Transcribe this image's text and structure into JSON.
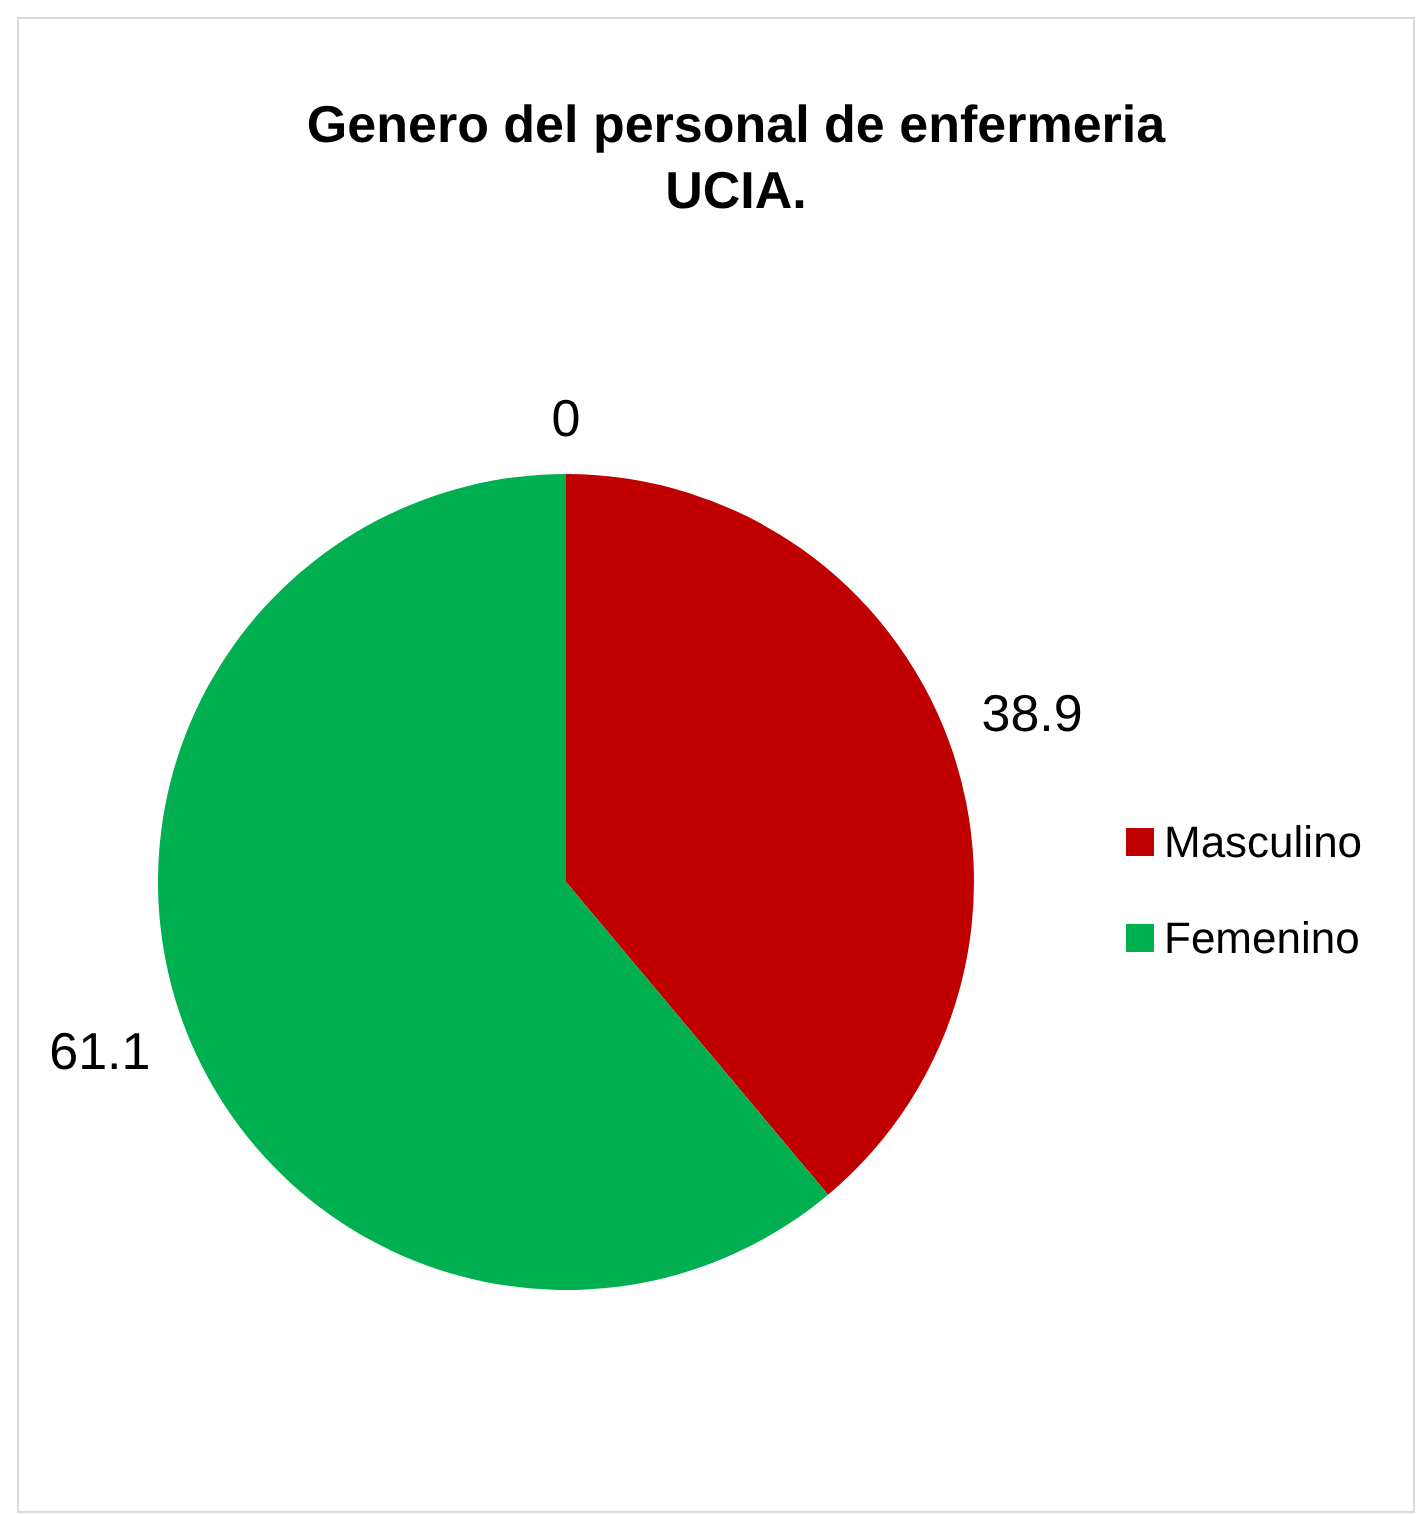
{
  "chart_data": {
    "type": "pie",
    "title": "Genero del personal de enfermeria UCIA.",
    "categories": [
      "Masculino",
      "Femenino",
      null
    ],
    "values": [
      38.9,
      61.1,
      0
    ],
    "colors": [
      "#c00000",
      "#00b050",
      "#4472c4"
    ],
    "value_labels": [
      "38.9",
      "61.1",
      "0"
    ],
    "legend": "right"
  }
}
